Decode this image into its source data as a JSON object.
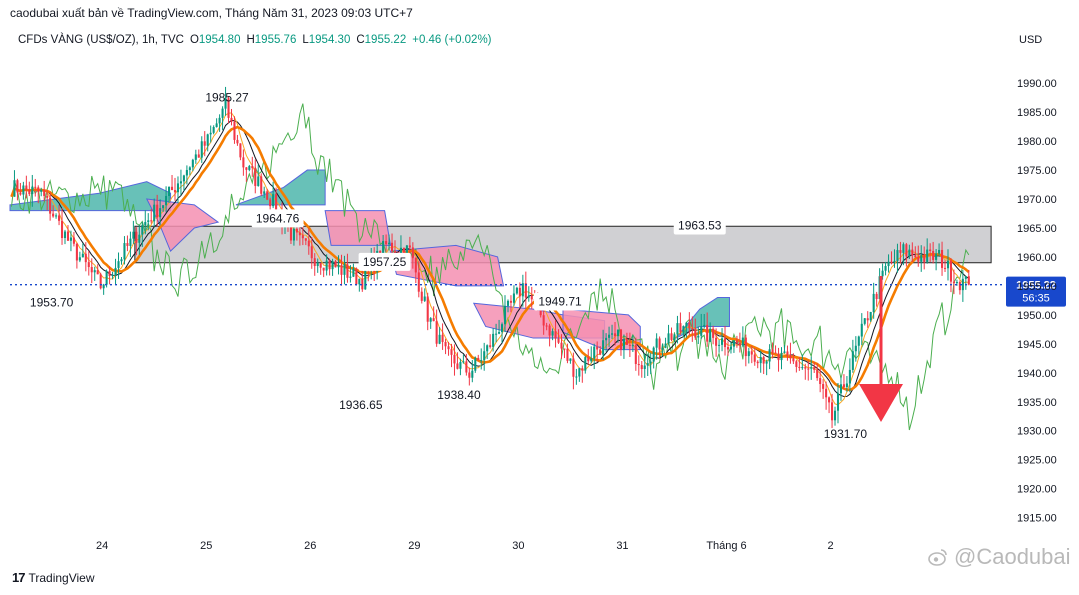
{
  "header": {
    "published": "caodubai xuất bản về TradingView.com, Tháng Năm 31, 2023 09:03 UTC+7"
  },
  "legend": {
    "symbol": "CFDs VÀNG (US$/OZ), 1h, TVC",
    "o_label": "O",
    "o_value": "1954.80",
    "h_label": "H",
    "h_value": "1955.76",
    "l_label": "L",
    "l_value": "1954.30",
    "c_label": "C",
    "c_value": "1955.22",
    "change": "+0.46 (+0.02%)"
  },
  "price_axis": {
    "currency": "USD",
    "current_price": "1955.22",
    "countdown": "56:35"
  },
  "footer": {
    "brand_logo": "17",
    "brand": "TradingView"
  },
  "watermark": {
    "icon": "weibo-icon",
    "text": "@Caodubai"
  },
  "colors": {
    "up": "#089981",
    "down": "#f23645",
    "ma": "#f57c00",
    "zone": "#c0c0c4",
    "cloud_red": "#f48fb1",
    "cloud_green": "#4db6ac",
    "current_line": "#1848cc",
    "arrow": "#f23645"
  },
  "chart_data": {
    "type": "candlestick",
    "title": "",
    "ylim": [
      1912,
      1994
    ],
    "y_ticks": [
      1915,
      1920,
      1925,
      1930,
      1935,
      1940,
      1945,
      1950,
      1955,
      1960,
      1965,
      1970,
      1975,
      1980,
      1985,
      1990
    ],
    "x_ticks": [
      "24",
      "25",
      "26",
      "29",
      "30",
      "31",
      "Tháng 6",
      "2"
    ],
    "current_price": 1955.22,
    "price_path": [
      [
        0,
        1972
      ],
      [
        10,
        1971
      ],
      [
        20,
        1962
      ],
      [
        30,
        1955
      ],
      [
        38,
        1961
      ],
      [
        45,
        1966
      ],
      [
        52,
        1970
      ],
      [
        60,
        1976
      ],
      [
        66,
        1980
      ],
      [
        72,
        1986
      ],
      [
        78,
        1976
      ],
      [
        86,
        1971
      ],
      [
        94,
        1964
      ],
      [
        102,
        1960
      ],
      [
        110,
        1958
      ],
      [
        118,
        1956
      ],
      [
        126,
        1962
      ],
      [
        134,
        1961
      ],
      [
        140,
        1950
      ],
      [
        146,
        1943
      ],
      [
        154,
        1940
      ],
      [
        160,
        1944
      ],
      [
        166,
        1950
      ],
      [
        172,
        1955
      ],
      [
        178,
        1950
      ],
      [
        184,
        1945
      ],
      [
        190,
        1940
      ],
      [
        196,
        1944
      ],
      [
        204,
        1946
      ],
      [
        212,
        1942
      ],
      [
        220,
        1946
      ],
      [
        228,
        1948
      ],
      [
        236,
        1946
      ],
      [
        244,
        1945
      ],
      [
        252,
        1943
      ],
      [
        262,
        1942
      ],
      [
        270,
        1940
      ],
      [
        276,
        1932
      ],
      [
        282,
        1941
      ],
      [
        288,
        1950
      ],
      [
        294,
        1958
      ],
      [
        300,
        1961
      ],
      [
        306,
        1960
      ],
      [
        312,
        1960
      ],
      [
        318,
        1956
      ],
      [
        322,
        1955.2
      ]
    ],
    "annotations": [
      {
        "label": "1985.27",
        "value": 1985.27
      },
      {
        "label": "1953.70",
        "value": 1953.7
      },
      {
        "label": "1964.76",
        "value": 1964.76
      },
      {
        "label": "1957.25",
        "value": 1957.25
      },
      {
        "label": "1936.65",
        "value": 1936.65
      },
      {
        "label": "1938.40",
        "value": 1938.4
      },
      {
        "label": "1949.71",
        "value": 1949.71
      },
      {
        "label": "1963.53",
        "value": 1963.53
      },
      {
        "label": "1931.70",
        "value": 1931.7
      }
    ],
    "resistance_zone": [
      1959,
      1965.3
    ],
    "grid": false
  }
}
